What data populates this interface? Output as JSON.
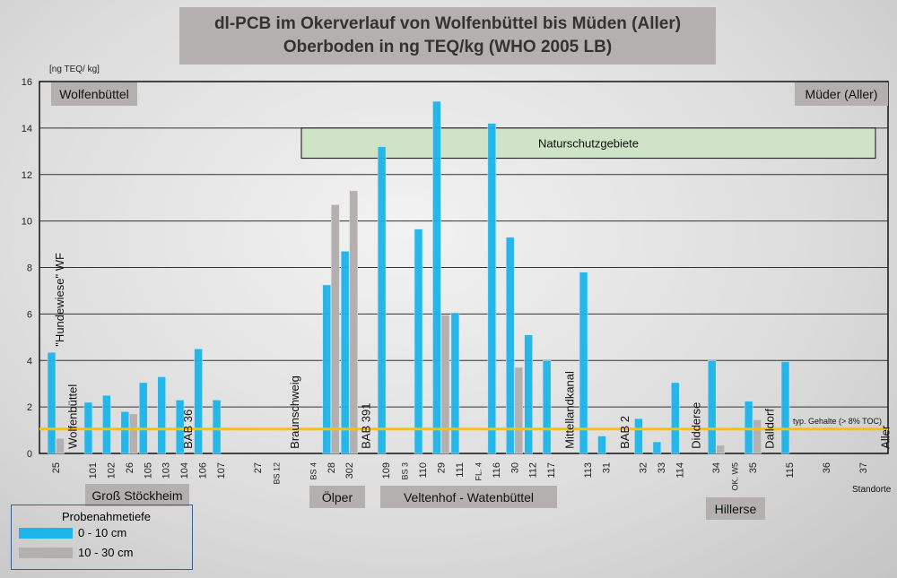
{
  "chart_data": {
    "type": "bar",
    "title": [
      "dl-PCB im Okerverlauf von Wolfenbüttel bis Müden (Aller)",
      "Oberboden in ng TEQ/kg (WHO 2005 LB)"
    ],
    "ylabel": "[ng TEQ/ kg]",
    "xlabel": "Standorte",
    "ylim": [
      0,
      16
    ],
    "yticks": [
      "0",
      "2",
      "4",
      "6",
      "8",
      "10",
      "12",
      "14",
      "16"
    ],
    "categories": [
      "25",
      "101",
      "102",
      "26",
      "105",
      "103",
      "104",
      "106",
      "107",
      "27",
      "BS 12",
      "BS 4",
      "28",
      "302",
      "109",
      "BS 3",
      "110",
      "29",
      "111",
      "FL. 4",
      "116",
      "30",
      "112",
      "117",
      "113",
      "31",
      "32",
      "33",
      "114",
      "34",
      "OK. W5",
      "35",
      "115",
      "36",
      "37"
    ],
    "slots": [
      0,
      2,
      3,
      4,
      5,
      6,
      7,
      8,
      9,
      11,
      12,
      14,
      15,
      16,
      18,
      19,
      20,
      21,
      22,
      23,
      24,
      25,
      26,
      27,
      29,
      30,
      32,
      33,
      34,
      36,
      37,
      38,
      40,
      42,
      44
    ],
    "series": [
      {
        "name": "0 - 10 cm",
        "color": "#1eb4ea",
        "values": [
          4.35,
          2.2,
          2.5,
          1.8,
          3.05,
          3.3,
          2.3,
          4.5,
          2.3,
          null,
          null,
          null,
          7.25,
          8.7,
          13.2,
          null,
          9.65,
          15.15,
          6.05,
          null,
          14.2,
          9.3,
          5.1,
          4.0,
          7.8,
          0.75,
          1.5,
          0.5,
          3.05,
          4.0,
          null,
          2.25,
          3.95,
          null,
          null
        ]
      },
      {
        "name": "10 - 30 cm",
        "color": "#b3b0af",
        "values": [
          0.65,
          null,
          null,
          1.7,
          null,
          null,
          null,
          null,
          null,
          null,
          null,
          null,
          10.7,
          11.3,
          null,
          null,
          null,
          5.95,
          null,
          null,
          null,
          3.7,
          null,
          null,
          null,
          null,
          null,
          null,
          null,
          0.35,
          null,
          1.45,
          null,
          null,
          null
        ]
      }
    ],
    "reference_line": {
      "value": 1.05,
      "label": "typ. Gehalte (> 8% TOC)",
      "color": "#ffc000"
    },
    "annotations": [
      {
        "text": "\"Hundewiese\" WF",
        "slot": 0.2,
        "bottom": 4.6
      },
      {
        "text": "Wolfenbüttel",
        "slot": 0.9,
        "bottom": 0.2
      },
      {
        "text": "BAB 36",
        "slot": 7.2,
        "bottom": 0.2
      },
      {
        "text": "Braunschweig",
        "slot": 13.0,
        "bottom": 0.2
      },
      {
        "text": "BAB 391",
        "slot": 16.9,
        "bottom": 0.2
      },
      {
        "text": "Mittellandkanal",
        "slot": 28.0,
        "bottom": 0.2
      },
      {
        "text": "BAB 2",
        "slot": 31.0,
        "bottom": 0.2
      },
      {
        "text": "Didderse",
        "slot": 34.9,
        "bottom": 0.2
      },
      {
        "text": "Dalldorf",
        "slot": 38.9,
        "bottom": 0.2
      },
      {
        "text": "Aller",
        "slot": 45.2,
        "bottom": 0.2
      }
    ],
    "region_labels": {
      "start": "Wolfenbüttel",
      "end": "Müder (Aller)",
      "nature": "Naturschutzgebiete",
      "gross": "Groß Stöckheim",
      "oelper": "Ölper",
      "velten": "Veltenhof - Watenbüttel",
      "hillerse": "Hillerse"
    },
    "legend": {
      "title": "Probenahmetiefe",
      "items": [
        "0 - 10 cm",
        "10 - 30 cm"
      ],
      "placement": "bottom-left"
    }
  }
}
